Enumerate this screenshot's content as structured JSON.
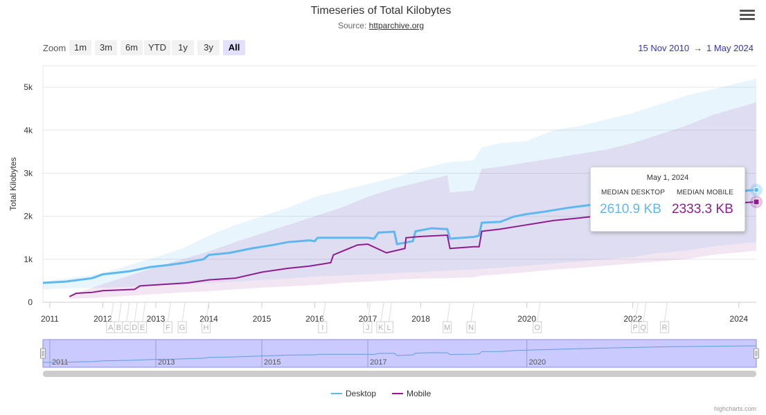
{
  "chart_data": {
    "type": "line",
    "title": "Timeseries of Total Kilobytes",
    "subtitle_prefix": "Source: ",
    "subtitle_link": "httparchive.org",
    "ylabel": "Total Kilobytes",
    "ylim": [
      0,
      5500
    ],
    "y_ticks": [
      {
        "value": 0,
        "label": "0"
      },
      {
        "value": 1000,
        "label": "1k"
      },
      {
        "value": 2000,
        "label": "2k"
      },
      {
        "value": 3000,
        "label": "3k"
      },
      {
        "value": 4000,
        "label": "4k"
      },
      {
        "value": 5000,
        "label": "5k"
      }
    ],
    "xlim": [
      2010.87,
      2024.33
    ],
    "x_ticks": [
      {
        "value": 2011,
        "label": "2011"
      },
      {
        "value": 2012,
        "label": "2012"
      },
      {
        "value": 2013,
        "label": "2013"
      },
      {
        "value": 2014,
        "label": "2014"
      },
      {
        "value": 2015,
        "label": "2015"
      },
      {
        "value": 2016,
        "label": "2016"
      },
      {
        "value": 2017,
        "label": "2017"
      },
      {
        "value": 2018,
        "label": "2018"
      },
      {
        "value": 2020,
        "label": "2020"
      },
      {
        "value": 2022,
        "label": "2022"
      },
      {
        "value": 2024,
        "label": "2024"
      }
    ],
    "series": [
      {
        "name": "Desktop",
        "color": "#5eb8f0",
        "points": [
          [
            2010.87,
            450
          ],
          [
            2011.3,
            480
          ],
          [
            2011.8,
            560
          ],
          [
            2012.0,
            650
          ],
          [
            2012.5,
            720
          ],
          [
            2012.9,
            820
          ],
          [
            2013.2,
            860
          ],
          [
            2013.5,
            910
          ],
          [
            2013.9,
            1000
          ],
          [
            2014.0,
            1100
          ],
          [
            2014.4,
            1150
          ],
          [
            2014.8,
            1250
          ],
          [
            2015.2,
            1330
          ],
          [
            2015.5,
            1400
          ],
          [
            2015.9,
            1440
          ],
          [
            2016.0,
            1420
          ],
          [
            2016.05,
            1500
          ],
          [
            2016.5,
            1500
          ],
          [
            2017.0,
            1500
          ],
          [
            2017.12,
            1480
          ],
          [
            2017.2,
            1620
          ],
          [
            2017.5,
            1640
          ],
          [
            2017.55,
            1350
          ],
          [
            2017.85,
            1420
          ],
          [
            2017.9,
            1650
          ],
          [
            2018.2,
            1720
          ],
          [
            2018.5,
            1700
          ],
          [
            2018.55,
            1480
          ],
          [
            2019.0,
            1520
          ],
          [
            2019.1,
            1550
          ],
          [
            2019.15,
            1850
          ],
          [
            2019.5,
            1870
          ],
          [
            2019.75,
            1990
          ],
          [
            2020.0,
            2050
          ],
          [
            2020.3,
            2100
          ],
          [
            2020.8,
            2200
          ],
          [
            2021.3,
            2280
          ],
          [
            2021.8,
            2360
          ],
          [
            2022.3,
            2440
          ],
          [
            2022.8,
            2500
          ],
          [
            2023.3,
            2540
          ],
          [
            2023.8,
            2570
          ],
          [
            2024.33,
            2610.9
          ]
        ],
        "band": [
          [
            2010.87,
            480,
            300
          ],
          [
            2011.5,
            580,
            330
          ],
          [
            2012.0,
            680,
            340
          ],
          [
            2012.5,
            860,
            360
          ],
          [
            2013.0,
            1050,
            390
          ],
          [
            2013.5,
            1250,
            410
          ],
          [
            2014.0,
            1550,
            450
          ],
          [
            2014.5,
            1800,
            480
          ],
          [
            2015.0,
            2000,
            520
          ],
          [
            2015.5,
            2200,
            550
          ],
          [
            2016.0,
            2450,
            600
          ],
          [
            2016.5,
            2600,
            620
          ],
          [
            2017.0,
            2750,
            650
          ],
          [
            2017.5,
            2900,
            680
          ],
          [
            2018.0,
            3100,
            700
          ],
          [
            2018.5,
            3250,
            740
          ],
          [
            2019.0,
            3300,
            760
          ],
          [
            2019.15,
            3600,
            780
          ],
          [
            2019.5,
            3700,
            800
          ],
          [
            2020.0,
            3750,
            850
          ],
          [
            2020.5,
            4000,
            900
          ],
          [
            2021.0,
            4100,
            950
          ],
          [
            2021.5,
            4250,
            1000
          ],
          [
            2022.0,
            4400,
            1050
          ],
          [
            2022.5,
            4600,
            1150
          ],
          [
            2023.0,
            4800,
            1200
          ],
          [
            2023.5,
            4950,
            1300
          ],
          [
            2024.33,
            5200,
            1400
          ]
        ]
      },
      {
        "name": "Mobile",
        "color": "#8e1c8e",
        "points": [
          [
            2011.37,
            130
          ],
          [
            2011.5,
            210
          ],
          [
            2011.8,
            230
          ],
          [
            2012.0,
            270
          ],
          [
            2012.6,
            300
          ],
          [
            2012.7,
            380
          ],
          [
            2013.2,
            420
          ],
          [
            2013.6,
            450
          ],
          [
            2014.0,
            520
          ],
          [
            2014.5,
            560
          ],
          [
            2015.0,
            700
          ],
          [
            2015.5,
            790
          ],
          [
            2015.9,
            840
          ],
          [
            2016.0,
            860
          ],
          [
            2016.3,
            920
          ],
          [
            2016.35,
            1100
          ],
          [
            2016.8,
            1330
          ],
          [
            2017.0,
            1350
          ],
          [
            2017.35,
            1150
          ],
          [
            2017.7,
            1250
          ],
          [
            2017.72,
            1500
          ],
          [
            2018.0,
            1530
          ],
          [
            2018.5,
            1560
          ],
          [
            2018.55,
            1250
          ],
          [
            2019.0,
            1290
          ],
          [
            2019.1,
            1290
          ],
          [
            2019.15,
            1650
          ],
          [
            2019.5,
            1700
          ],
          [
            2020.0,
            1800
          ],
          [
            2020.5,
            1900
          ],
          [
            2021.0,
            1960
          ],
          [
            2021.5,
            2030
          ],
          [
            2022.0,
            2100
          ],
          [
            2022.5,
            2170
          ],
          [
            2023.0,
            2220
          ],
          [
            2023.5,
            2270
          ],
          [
            2024.33,
            2333.3
          ]
        ],
        "band": [
          [
            2011.37,
            160,
            80
          ],
          [
            2012.0,
            420,
            110
          ],
          [
            2012.5,
            620,
            150
          ],
          [
            2013.0,
            820,
            190
          ],
          [
            2013.5,
            1000,
            230
          ],
          [
            2014.0,
            1180,
            260
          ],
          [
            2014.5,
            1400,
            300
          ],
          [
            2015.0,
            1600,
            340
          ],
          [
            2015.5,
            1800,
            370
          ],
          [
            2016.0,
            2000,
            400
          ],
          [
            2016.5,
            2200,
            450
          ],
          [
            2017.0,
            2450,
            480
          ],
          [
            2017.5,
            2650,
            520
          ],
          [
            2018.0,
            2800,
            550
          ],
          [
            2018.5,
            2950,
            560
          ],
          [
            2018.55,
            2550,
            560
          ],
          [
            2019.0,
            2600,
            580
          ],
          [
            2019.15,
            3100,
            620
          ],
          [
            2019.5,
            3150,
            650
          ],
          [
            2020.0,
            3250,
            700
          ],
          [
            2020.5,
            3350,
            760
          ],
          [
            2021.0,
            3450,
            800
          ],
          [
            2021.5,
            3550,
            850
          ],
          [
            2022.0,
            3700,
            900
          ],
          [
            2022.5,
            3900,
            950
          ],
          [
            2023.0,
            4100,
            1000
          ],
          [
            2023.5,
            4350,
            1100
          ],
          [
            2024.33,
            4650,
            1200
          ]
        ]
      }
    ],
    "flags": [
      {
        "label": "A",
        "x": 2012.2
      },
      {
        "label": "B",
        "x": 2012.35
      },
      {
        "label": "C",
        "x": 2012.5
      },
      {
        "label": "D",
        "x": 2012.65
      },
      {
        "label": "E",
        "x": 2012.8
      },
      {
        "label": "F",
        "x": 2013.28
      },
      {
        "label": "G",
        "x": 2013.55
      },
      {
        "label": "H",
        "x": 2014.0
      },
      {
        "label": "I",
        "x": 2016.2
      },
      {
        "label": "J",
        "x": 2017.05
      },
      {
        "label": "K",
        "x": 2017.3
      },
      {
        "label": "L",
        "x": 2017.45
      },
      {
        "label": "M",
        "x": 2018.55
      },
      {
        "label": "N",
        "x": 2019.0
      },
      {
        "label": "O",
        "x": 2020.25
      },
      {
        "label": "P",
        "x": 2022.1
      },
      {
        "label": "Q",
        "x": 2022.25
      },
      {
        "label": "R",
        "x": 2022.65
      }
    ],
    "navigator_labels": [
      "2011",
      "2013",
      "2015",
      "2017",
      "2020"
    ],
    "navigator_label_x": [
      2011,
      2013,
      2015,
      2017,
      2020
    ]
  },
  "zoom": {
    "label": "Zoom",
    "buttons": [
      "1m",
      "3m",
      "6m",
      "YTD",
      "1y",
      "3y",
      "All"
    ],
    "active": "All"
  },
  "date_range": {
    "from": "15 Nov 2010",
    "arrow": "→",
    "to": "1 May 2024"
  },
  "tooltip": {
    "date": "May 1, 2024",
    "desktop_label": "MEDIAN DESKTOP",
    "mobile_label": "MEDIAN MOBILE",
    "desktop_value": "2610.9 KB",
    "mobile_value": "2333.3 KB",
    "desktop_color": "#5eb8f0",
    "mobile_color": "#8e1c8e"
  },
  "legend": {
    "desktop": "Desktop",
    "mobile": "Mobile"
  },
  "credits": "highcharts.com"
}
